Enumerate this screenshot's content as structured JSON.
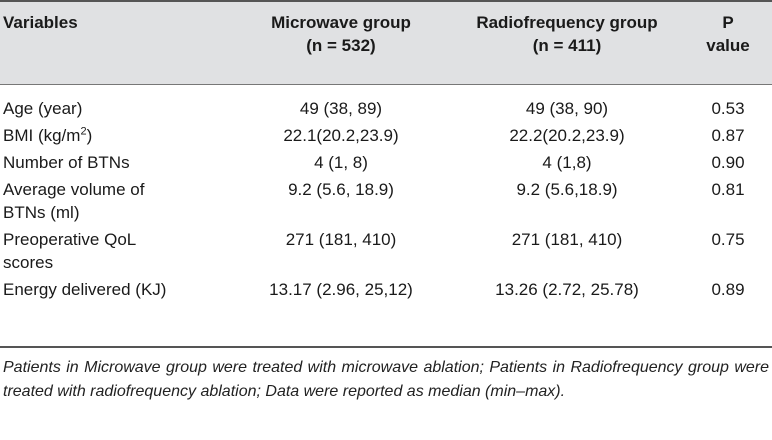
{
  "table": {
    "headers": [
      {
        "line1": "Variables",
        "line2": ""
      },
      {
        "line1": "Microwave group",
        "line2": "(n = 532)"
      },
      {
        "line1": "Radiofrequency group",
        "line2": "(n = 411)"
      },
      {
        "line1": "P",
        "line2": "value"
      }
    ],
    "rows": [
      {
        "variable": "Age (year)",
        "variable_line2": "",
        "microwave": "49 (38, 89)",
        "radiofrequency": "49 (38, 90)",
        "p": "0.53"
      },
      {
        "variable": "BMI (kg/m",
        "variable_sup": "2",
        "variable_tail": ")",
        "variable_line2": "",
        "microwave": "22.1(20.2,23.9)",
        "radiofrequency": "22.2(20.2,23.9)",
        "p": "0.87"
      },
      {
        "variable": "Number of BTNs",
        "variable_line2": "",
        "microwave": "4 (1, 8)",
        "radiofrequency": "4 (1,8)",
        "p": "0.90"
      },
      {
        "variable": "Average volume of",
        "variable_line2": "BTNs (ml)",
        "microwave": "9.2 (5.6, 18.9)",
        "radiofrequency": "9.2 (5.6,18.9)",
        "p": "0.81"
      },
      {
        "variable": "Preoperative QoL",
        "variable_line2": "scores",
        "microwave": "271 (181, 410)",
        "radiofrequency": "271 (181, 410)",
        "p": "0.75"
      },
      {
        "variable": "Energy delivered (KJ)",
        "variable_line2": "",
        "microwave": "13.17 (2.96, 25,12)",
        "radiofrequency": "13.26 (2.72, 25.78)",
        "p": "0.89"
      }
    ]
  },
  "footnote": "Patients in Microwave group were treated with microwave ablation; Patients in Radiofrequency group were treated with radiofrequency ablation; Data were reported as median (min–max)."
}
